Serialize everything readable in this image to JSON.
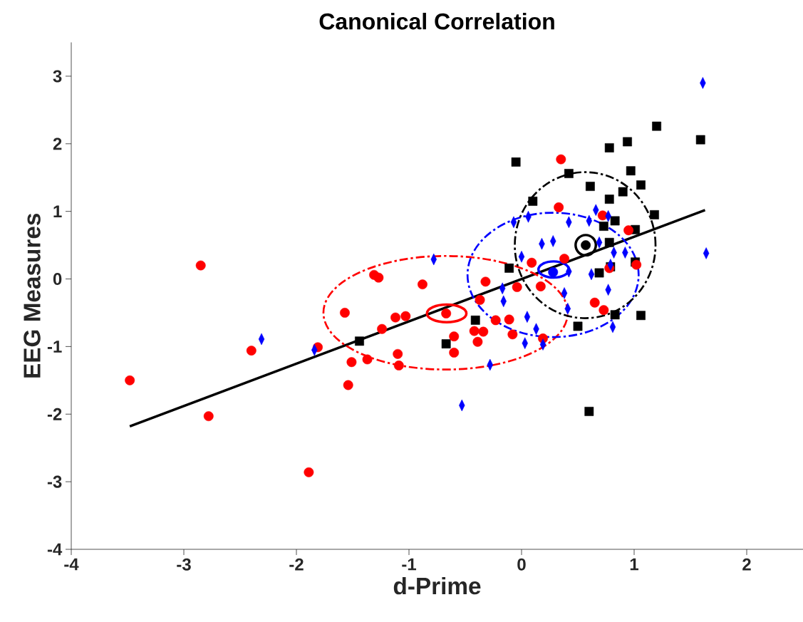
{
  "chart_data": {
    "type": "scatter",
    "title": "Canonical Correlation",
    "xlabel": "d-Prime",
    "ylabel": "EEG Measures",
    "xlim": [
      -4,
      2.5
    ],
    "ylim": [
      -4,
      3.5
    ],
    "xticks": [
      -4,
      -3,
      -2,
      -1,
      0,
      1,
      2
    ],
    "yticks": [
      -4,
      -3,
      -2,
      -1,
      0,
      1,
      2,
      3
    ],
    "grid": false,
    "series": [
      {
        "type": "line",
        "color": "#000000",
        "line_style": "solid",
        "x": [
          -3.48,
          1.63
        ],
        "values": [
          -2.18,
          1.02
        ]
      },
      {
        "color": "#ff0000",
        "marker": "circle",
        "x": [
          -3.48,
          -2.85,
          -2.78,
          -2.4,
          -1.89,
          -1.81,
          -1.57,
          -1.54,
          -1.51,
          -1.37,
          -1.31,
          -1.27,
          -1.24,
          -1.12,
          -1.1,
          -1.09,
          -1.03,
          -0.88,
          -0.6,
          -0.6,
          -0.42,
          -0.39,
          -0.37,
          -0.34,
          -0.32,
          -0.23,
          -0.11,
          -0.08,
          -0.04,
          0.09,
          0.17,
          0.19,
          0.33,
          0.35,
          0.38,
          0.65,
          0.72,
          0.73,
          0.78,
          0.95,
          1.02
        ],
        "values": [
          -1.5,
          0.2,
          -2.03,
          -1.06,
          -2.86,
          -1.01,
          -0.5,
          -1.57,
          -1.23,
          -1.19,
          0.06,
          0.02,
          -0.74,
          -0.57,
          -1.11,
          -1.28,
          -0.55,
          -0.08,
          -0.85,
          -1.09,
          -0.77,
          -0.93,
          -0.31,
          -0.78,
          -0.04,
          -0.61,
          -0.6,
          -0.82,
          -0.12,
          0.24,
          -0.11,
          -0.88,
          1.06,
          1.77,
          0.3,
          -0.35,
          0.94,
          -0.46,
          0.16,
          0.72,
          0.21
        ]
      },
      {
        "color": "#0000ff",
        "marker": "diamond",
        "x": [
          -2.31,
          -1.84,
          -0.78,
          -0.53,
          -0.28,
          -0.17,
          -0.16,
          0.05,
          0.13,
          0.03,
          0.38,
          0.41,
          0.19,
          0.77,
          0.81,
          0.62,
          -0.07,
          0.06,
          0.0,
          0.18,
          0.28,
          0.42,
          0.6,
          0.66,
          0.77,
          0.69,
          0.82,
          0.92,
          0.42,
          0.79,
          1.61,
          1.64
        ],
        "values": [
          -0.89,
          -1.05,
          0.29,
          -1.87,
          -1.27,
          -0.14,
          -0.33,
          -0.56,
          -0.74,
          -0.95,
          -0.21,
          -0.44,
          -0.97,
          -0.16,
          -0.71,
          0.07,
          0.84,
          0.92,
          0.33,
          0.52,
          0.56,
          0.84,
          0.86,
          1.02,
          0.93,
          0.54,
          0.39,
          0.39,
          0.11,
          0.21,
          2.9,
          0.38
        ]
      },
      {
        "color": "#000000",
        "marker": "square",
        "x": [
          -1.44,
          -0.67,
          -0.41,
          0.5,
          0.83,
          1.06,
          0.6,
          0.69,
          -0.05,
          0.42,
          0.1,
          0.61,
          0.78,
          0.94,
          1.2,
          0.97,
          1.06,
          0.9,
          0.78,
          1.18,
          0.83,
          0.73,
          1.01,
          0.78,
          -0.11,
          1.01,
          0.79,
          1.59
        ],
        "values": [
          -0.92,
          -0.96,
          -0.61,
          -0.7,
          -0.53,
          -0.54,
          -1.96,
          0.09,
          1.73,
          1.56,
          1.15,
          1.37,
          1.94,
          2.03,
          2.26,
          1.6,
          1.39,
          1.29,
          1.18,
          0.95,
          0.86,
          0.78,
          0.73,
          0.54,
          0.16,
          0.25,
          0.18,
          2.06
        ]
      },
      {
        "color": "#ff0000",
        "marker": "circle",
        "x": [
          -0.67
        ],
        "values": [
          -0.51
        ]
      },
      {
        "color": "#0000ff",
        "marker": "circle",
        "x": [
          0.28
        ],
        "values": [
          0.1
        ]
      },
      {
        "color": "#000000",
        "marker": "circle",
        "x": [
          0.57
        ],
        "values": [
          0.5
        ]
      }
    ]
  }
}
